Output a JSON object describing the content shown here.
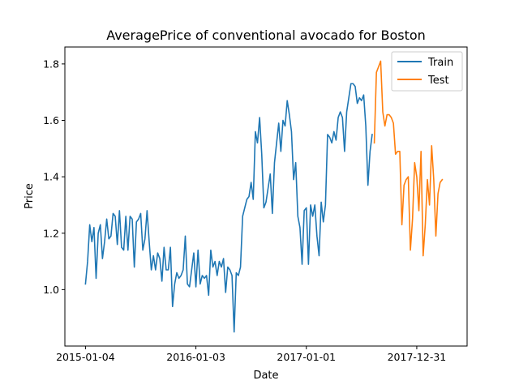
{
  "chart_data": {
    "type": "line",
    "title": "AveragePrice of conventional avocado for Boston",
    "xlabel": "Date",
    "ylabel": "Price",
    "x_ticks": [
      "2015-01-04",
      "2016-01-03",
      "2017-01-01",
      "2017-12-31"
    ],
    "y_ticks": [
      "1.0",
      "1.2",
      "1.4",
      "1.6",
      "1.8"
    ],
    "ylim": [
      0.8,
      1.86
    ],
    "xlim_weeks": [
      -9.7,
      179.7
    ],
    "grid": false,
    "legend_position": "top-right",
    "series": [
      {
        "name": "Train",
        "color": "#1f77b4",
        "x_start_week": 0,
        "values": [
          1.02,
          1.1,
          1.23,
          1.17,
          1.22,
          1.04,
          1.2,
          1.23,
          1.11,
          1.17,
          1.25,
          1.18,
          1.19,
          1.27,
          1.26,
          1.16,
          1.28,
          1.15,
          1.14,
          1.26,
          1.14,
          1.26,
          1.25,
          1.08,
          1.24,
          1.25,
          1.27,
          1.14,
          1.18,
          1.28,
          1.17,
          1.07,
          1.12,
          1.07,
          1.13,
          1.11,
          1.03,
          1.15,
          1.07,
          1.07,
          1.15,
          0.94,
          1.02,
          1.06,
          1.04,
          1.05,
          1.07,
          1.19,
          1.02,
          1.01,
          1.07,
          1.13,
          1.01,
          1.14,
          1.02,
          1.05,
          1.04,
          1.05,
          0.98,
          1.14,
          1.08,
          1.1,
          1.05,
          1.1,
          1.08,
          1.11,
          0.99,
          1.08,
          1.07,
          1.05,
          0.85,
          1.06,
          1.05,
          1.08,
          1.26,
          1.29,
          1.32,
          1.33,
          1.38,
          1.32,
          1.56,
          1.52,
          1.61,
          1.48,
          1.29,
          1.31,
          1.36,
          1.41,
          1.27,
          1.45,
          1.52,
          1.59,
          1.49,
          1.6,
          1.58,
          1.67,
          1.62,
          1.56,
          1.39,
          1.45,
          1.26,
          1.22,
          1.09,
          1.28,
          1.29,
          1.09,
          1.3,
          1.26,
          1.3,
          1.19,
          1.12,
          1.31,
          1.24,
          1.3,
          1.55,
          1.54,
          1.52,
          1.56,
          1.53,
          1.61,
          1.63,
          1.61,
          1.49,
          1.63,
          1.68,
          1.73,
          1.73,
          1.72,
          1.66,
          1.68,
          1.67,
          1.69,
          1.58,
          1.37,
          1.49,
          1.55
        ]
      },
      {
        "name": "Test",
        "color": "#ff7f0e",
        "x_start_week": 136,
        "values": [
          1.52,
          1.77,
          1.79,
          1.81,
          1.63,
          1.58,
          1.62,
          1.62,
          1.61,
          1.59,
          1.48,
          1.49,
          1.49,
          1.23,
          1.37,
          1.39,
          1.4,
          1.14,
          1.25,
          1.45,
          1.4,
          1.28,
          1.49,
          1.12,
          1.23,
          1.39,
          1.3,
          1.51,
          1.39,
          1.19,
          1.34,
          1.38,
          1.39
        ]
      }
    ]
  }
}
